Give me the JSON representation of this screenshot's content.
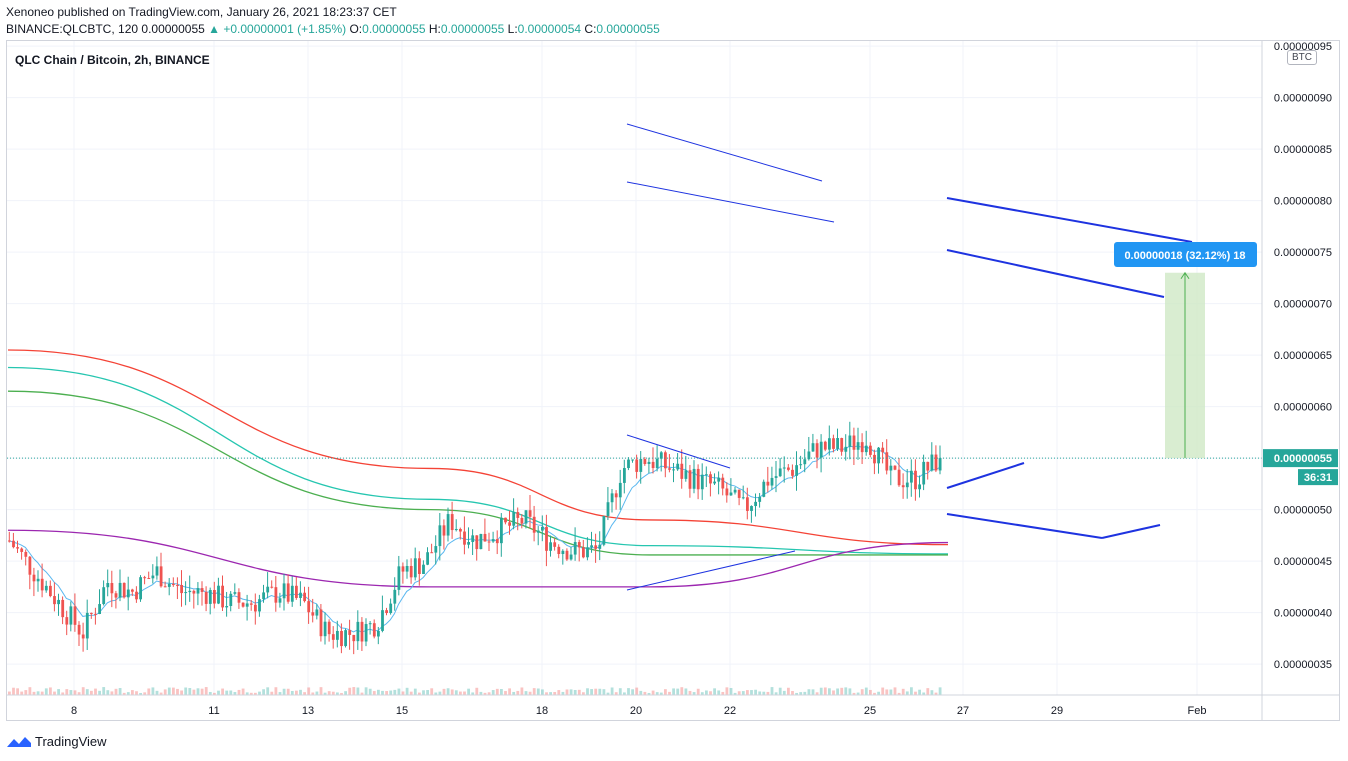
{
  "header": {
    "published": "Xenoneo published on TradingView.com, January 26, 2021 18:23:37 CET",
    "symbol": "BINANCE:QLCBTC, 120",
    "last": "0.00000055",
    "change": "▲ +0.00000001 (+1.85%)",
    "o_label": "O:",
    "o": "0.00000055",
    "h_label": "H:",
    "h": "0.00000055",
    "l_label": "L:",
    "l": "0.00000054",
    "c_label": "C:",
    "c": "0.00000055"
  },
  "pane_title": "QLC Chain / Bitcoin, 2h, BINANCE",
  "currency": "BTC",
  "price_label": "0.00000055",
  "countdown": "36:31",
  "measure_label": "0.00000018 (32.12%) 18",
  "footer": {
    "brand": "TradingView"
  },
  "colors": {
    "up": "#26a69a",
    "down": "#ef5350",
    "ema_red": "#f44336",
    "ema_teal": "#26c6b0",
    "ema_green": "#4caf50",
    "ma_purple": "#9c27b0",
    "ma_blue": "#5bb8f0",
    "trendline": "#1e33e0",
    "measure_fill": "#cfe9c6",
    "price_line": "#26a69a"
  },
  "chart_data": {
    "type": "candlestick",
    "title": "QLC Chain / Bitcoin, 2h, BINANCE",
    "x_ticks": [
      "8",
      "11",
      "13",
      "15",
      "18",
      "20",
      "22",
      "25",
      "27",
      "29",
      "Feb"
    ],
    "y_ticks": [
      "0.00000035",
      "0.00000040",
      "0.00000045",
      "0.00000050",
      "0.00000055",
      "0.00000060",
      "0.00000065",
      "0.00000070",
      "0.00000075",
      "0.00000080",
      "0.00000085",
      "0.00000090",
      "0.00000095"
    ],
    "y_range": [
      3.2e-07,
      9.55e-07
    ],
    "close_path": [
      4.7e-07,
      4.4e-07,
      4.1e-07,
      3.8e-07,
      4.3e-07,
      4.2e-07,
      4.4e-07,
      4.2e-07,
      4.2e-07,
      4.1e-07,
      4.1e-07,
      4.2e-07,
      4.1e-07,
      3.8e-07,
      3.8e-07,
      3.9e-07,
      4.4e-07,
      4.5e-07,
      4.9e-07,
      4.7e-07,
      4.8e-07,
      4.9e-07,
      4.7e-07,
      4.6e-07,
      4.6e-07,
      5.4e-07,
      5.5e-07,
      5.4e-07,
      5.3e-07,
      5.2e-07,
      5e-07,
      5.3e-07,
      5.4e-07,
      5.6e-07,
      5.6e-07,
      5.7e-07,
      5.3e-07,
      5.3e-07,
      5.5e-07
    ],
    "series": [
      {
        "name": "EMA (red)",
        "values": [
          6.55e-07,
          5.4e-07,
          4.9e-07,
          4.66e-07
        ]
      },
      {
        "name": "EMA (teal)",
        "values": [
          6.38e-07,
          5.1e-07,
          4.65e-07,
          4.57e-07
        ]
      },
      {
        "name": "EMA (green)",
        "values": [
          6.15e-07,
          5e-07,
          4.56e-07,
          4.56e-07
        ]
      },
      {
        "name": "MA (purple)",
        "values": [
          4.8e-07,
          4.25e-07,
          4.25e-07,
          4.68e-07
        ]
      }
    ],
    "measurement": {
      "from": 5.5e-07,
      "to": 7.3e-07,
      "bars": 18,
      "percent": "32.12%"
    },
    "current_price": 5.5e-07
  }
}
